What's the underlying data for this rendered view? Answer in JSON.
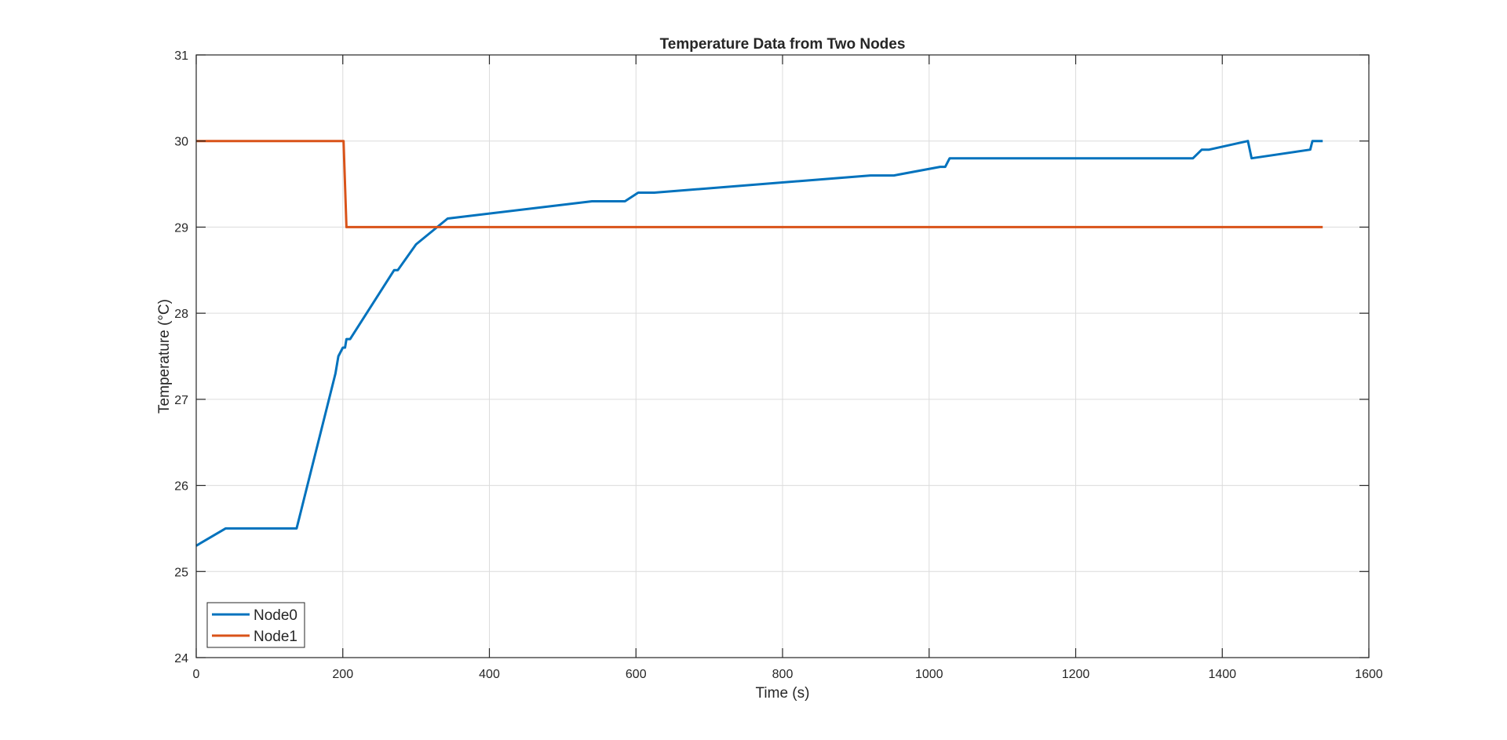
{
  "chart_data": {
    "type": "line",
    "title": "Temperature Data from Two Nodes",
    "xlabel": "Time (s)",
    "ylabel": "Temperature (°C)",
    "xlim": [
      0,
      1600
    ],
    "ylim": [
      24,
      31
    ],
    "xticks": [
      0,
      200,
      400,
      600,
      800,
      1000,
      1200,
      1400,
      1600
    ],
    "yticks": [
      24,
      25,
      26,
      27,
      28,
      29,
      30,
      31
    ],
    "xtick_labels": [
      "0",
      "200",
      "400",
      "600",
      "800",
      "1000",
      "1200",
      "1400",
      "1600"
    ],
    "ytick_labels": [
      "24",
      "25",
      "26",
      "27",
      "28",
      "29",
      "30",
      "31"
    ],
    "grid": true,
    "legend_position": "bottom-left",
    "series": [
      {
        "name": "Node0",
        "color": "#0072BD",
        "x": [
          0,
          40,
          137,
          190,
          194,
          200,
          203,
          205,
          210,
          270,
          275,
          300,
          343,
          540,
          585,
          603,
          625,
          920,
          952,
          1015,
          1022,
          1028,
          1030,
          1360,
          1372,
          1382,
          1435,
          1440,
          1520,
          1523,
          1537
        ],
        "y": [
          25.3,
          25.5,
          25.5,
          27.3,
          27.5,
          27.6,
          27.6,
          27.7,
          27.7,
          28.5,
          28.5,
          28.8,
          29.1,
          29.3,
          29.3,
          29.4,
          29.4,
          29.6,
          29.6,
          29.7,
          29.7,
          29.8,
          29.8,
          29.8,
          29.9,
          29.9,
          30.0,
          29.8,
          29.9,
          30.0,
          30.0
        ]
      },
      {
        "name": "Node1",
        "color": "#D95319",
        "x": [
          0,
          201,
          205,
          1537
        ],
        "y": [
          30.0,
          30.0,
          29.0,
          29.0
        ]
      }
    ]
  }
}
